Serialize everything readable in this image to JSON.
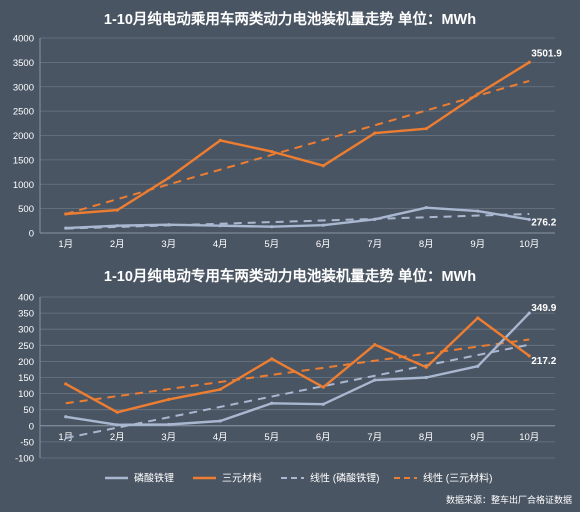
{
  "colors": {
    "background": "#4a5563",
    "lfp": "#a9b7d0",
    "ternary": "#ed7d31",
    "lfp_trend": "#a9b7d0",
    "ternary_trend": "#ed7d31",
    "grid": "#6b7684"
  },
  "legend": {
    "lfp": "磷酸铁锂",
    "ternary": "三元材料",
    "lfp_trend": "线性 (磷酸铁锂)",
    "ternary_trend": "线性 (三元材料)"
  },
  "source": "数据来源：整车出厂合格证数据",
  "chart_data": [
    {
      "type": "line",
      "title": "1-10月纯电动乘用车两类动力电池装机量走势   单位：MWh",
      "categories": [
        "1月",
        "2月",
        "3月",
        "4月",
        "5月",
        "6月",
        "7月",
        "8月",
        "9月",
        "10月"
      ],
      "ylim": [
        0,
        4000
      ],
      "yticks": [
        0,
        500,
        1000,
        1500,
        2000,
        2500,
        3000,
        3500,
        4000
      ],
      "grid": true,
      "series": [
        {
          "name": "磷酸铁锂",
          "values": [
            100,
            150,
            170,
            150,
            130,
            160,
            280,
            520,
            450,
            276.2
          ]
        },
        {
          "name": "三元材料",
          "values": [
            390,
            470,
            1130,
            1900,
            1670,
            1380,
            2050,
            2140,
            2850,
            3501.9
          ]
        }
      ],
      "trendlines": [
        {
          "name": "线性 (磷酸铁锂)",
          "start": 90,
          "end": 390
        },
        {
          "name": "线性 (三元材料)",
          "start": 390,
          "end": 3120
        }
      ],
      "end_labels": [
        "3501.9",
        "276.2"
      ]
    },
    {
      "type": "line",
      "title": "1-10月纯电动专用车两类动力电池装机量走势   单位：MWh",
      "categories": [
        "1月",
        "2月",
        "3月",
        "4月",
        "5月",
        "6月",
        "7月",
        "8月",
        "9月",
        "10月"
      ],
      "ylim": [
        -100,
        400
      ],
      "yticks": [
        -100,
        -50,
        0,
        50,
        100,
        150,
        200,
        250,
        300,
        350,
        400
      ],
      "grid": true,
      "series": [
        {
          "name": "磷酸铁锂",
          "values": [
            28,
            3,
            4,
            15,
            70,
            67,
            142,
            150,
            185,
            349.9
          ]
        },
        {
          "name": "三元材料",
          "values": [
            130,
            42,
            82,
            113,
            208,
            120,
            252,
            182,
            335,
            217.2
          ]
        }
      ],
      "trendlines": [
        {
          "name": "线性 (磷酸铁锂)",
          "start": -38,
          "end": 252
        },
        {
          "name": "线性 (三元材料)",
          "start": 70,
          "end": 268
        }
      ],
      "end_labels": [
        "349.9",
        "217.2"
      ]
    }
  ]
}
